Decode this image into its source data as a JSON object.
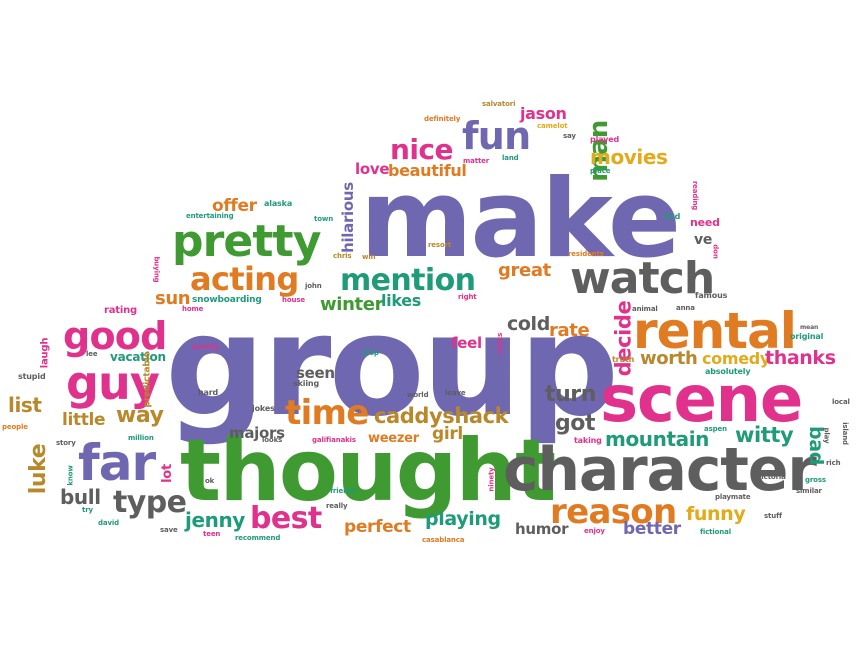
{
  "palette": {
    "purple": "#6f67b0",
    "green": "#3f9a32",
    "orange": "#e07b22",
    "pink": "#e0328c",
    "gray": "#5e5e5e",
    "yellow": "#e2ab1b",
    "teal": "#1f9b79",
    "brown": "#b8882a"
  },
  "words": [
    {
      "text": "group",
      "color": "purple"
    },
    {
      "text": "make",
      "color": "purple"
    },
    {
      "text": "thought",
      "color": "green"
    },
    {
      "text": "character",
      "color": "gray"
    },
    {
      "text": "scene",
      "color": "pink"
    },
    {
      "text": "pretty",
      "color": "green"
    },
    {
      "text": "rental",
      "color": "orange"
    },
    {
      "text": "watch",
      "color": "gray"
    },
    {
      "text": "far",
      "color": "purple"
    },
    {
      "text": "guy",
      "color": "pink"
    },
    {
      "text": "good",
      "color": "pink"
    },
    {
      "text": "acting",
      "color": "orange"
    },
    {
      "text": "mention",
      "color": "teal"
    },
    {
      "text": "fun",
      "color": "purple"
    },
    {
      "text": "nice",
      "color": "pink"
    },
    {
      "text": "man",
      "color": "green"
    },
    {
      "text": "reason",
      "color": "orange"
    },
    {
      "text": "time",
      "color": "orange"
    },
    {
      "text": "best",
      "color": "pink"
    },
    {
      "text": "type",
      "color": "gray"
    },
    {
      "text": "movies",
      "color": "yellow"
    },
    {
      "text": "beautiful",
      "color": "orange"
    },
    {
      "text": "caddyshack",
      "color": "brown"
    },
    {
      "text": "mountain",
      "color": "teal"
    },
    {
      "text": "witty",
      "color": "teal"
    },
    {
      "text": "funny",
      "color": "yellow"
    },
    {
      "text": "playing",
      "color": "teal"
    },
    {
      "text": "perfect",
      "color": "orange"
    },
    {
      "text": "jenny",
      "color": "teal"
    },
    {
      "text": "luke",
      "color": "brown"
    },
    {
      "text": "list",
      "color": "brown"
    },
    {
      "text": "little",
      "color": "brown"
    },
    {
      "text": "way",
      "color": "brown"
    },
    {
      "text": "bull",
      "color": "gray"
    },
    {
      "text": "turn",
      "color": "gray"
    },
    {
      "text": "got",
      "color": "gray"
    },
    {
      "text": "girl",
      "color": "brown"
    },
    {
      "text": "cold",
      "color": "gray"
    },
    {
      "text": "rate",
      "color": "orange"
    },
    {
      "text": "decide",
      "color": "pink"
    },
    {
      "text": "worth",
      "color": "brown"
    },
    {
      "text": "comedy",
      "color": "yellow"
    },
    {
      "text": "thanks",
      "color": "pink"
    },
    {
      "text": "great",
      "color": "orange"
    },
    {
      "text": "winter",
      "color": "green"
    },
    {
      "text": "likes",
      "color": "teal"
    },
    {
      "text": "sun",
      "color": "orange"
    },
    {
      "text": "offer",
      "color": "orange"
    },
    {
      "text": "love",
      "color": "pink"
    },
    {
      "text": "jason",
      "color": "pink"
    },
    {
      "text": "hilarious",
      "color": "purple"
    },
    {
      "text": "seen",
      "color": "gray"
    },
    {
      "text": "feel",
      "color": "pink"
    },
    {
      "text": "majors",
      "color": "gray"
    },
    {
      "text": "weezer",
      "color": "orange"
    },
    {
      "text": "humor",
      "color": "gray"
    },
    {
      "text": "better",
      "color": "purple"
    },
    {
      "text": "bad",
      "color": "teal"
    },
    {
      "text": "lot",
      "color": "pink"
    },
    {
      "text": "vacation",
      "color": "teal"
    },
    {
      "text": "snowboarding",
      "color": "teal"
    },
    {
      "text": "rating",
      "color": "pink"
    },
    {
      "text": "laugh",
      "color": "pink"
    },
    {
      "text": "stupid",
      "color": "gray"
    },
    {
      "text": "predictable",
      "color": "brown"
    },
    {
      "text": "worthy",
      "color": "pink"
    },
    {
      "text": "hard",
      "color": "gray"
    },
    {
      "text": "jokes",
      "color": "gray"
    },
    {
      "text": "skiing",
      "color": "gray"
    },
    {
      "text": "stop",
      "color": "teal"
    },
    {
      "text": "world",
      "color": "gray"
    },
    {
      "text": "leave",
      "color": "gray"
    },
    {
      "text": "taking",
      "color": "pink"
    },
    {
      "text": "aspen",
      "color": "teal"
    },
    {
      "text": "absolutely",
      "color": "teal"
    },
    {
      "text": "truth",
      "color": "brown"
    },
    {
      "text": "ve",
      "color": "gray"
    },
    {
      "text": "need",
      "color": "pink"
    },
    {
      "text": "dvd",
      "color": "teal"
    },
    {
      "text": "played",
      "color": "pink"
    },
    {
      "text": "say",
      "color": "gray"
    },
    {
      "text": "land",
      "color": "teal"
    },
    {
      "text": "place",
      "color": "teal"
    },
    {
      "text": "matter",
      "color": "pink"
    },
    {
      "text": "camelot",
      "color": "yellow"
    },
    {
      "text": "salvatori",
      "color": "brown"
    },
    {
      "text": "definitely",
      "color": "orange"
    },
    {
      "text": "alaska",
      "color": "teal"
    },
    {
      "text": "entertaining",
      "color": "teal"
    },
    {
      "text": "town",
      "color": "teal"
    },
    {
      "text": "resort",
      "color": "brown"
    },
    {
      "text": "residents",
      "color": "orange"
    },
    {
      "text": "chris",
      "color": "brown"
    },
    {
      "text": "win",
      "color": "brown"
    },
    {
      "text": "john",
      "color": "gray"
    },
    {
      "text": "house",
      "color": "pink"
    },
    {
      "text": "right",
      "color": "pink"
    },
    {
      "text": "home",
      "color": "pink"
    },
    {
      "text": "buying",
      "color": "pink"
    },
    {
      "text": "reading",
      "color": "pink"
    },
    {
      "text": "don",
      "color": "pink"
    },
    {
      "text": "famous",
      "color": "gray"
    },
    {
      "text": "anna",
      "color": "gray"
    },
    {
      "text": "animal",
      "color": "gray"
    },
    {
      "text": "original",
      "color": "teal"
    },
    {
      "text": "mean",
      "color": "gray"
    },
    {
      "text": "local",
      "color": "gray"
    },
    {
      "text": "island",
      "color": "gray"
    },
    {
      "text": "play",
      "color": "gray"
    },
    {
      "text": "rich",
      "color": "gray"
    },
    {
      "text": "gross",
      "color": "teal"
    },
    {
      "text": "similar",
      "color": "gray"
    },
    {
      "text": "victoria",
      "color": "gray"
    },
    {
      "text": "playmate",
      "color": "gray"
    },
    {
      "text": "stuff",
      "color": "gray"
    },
    {
      "text": "fictional",
      "color": "teal"
    },
    {
      "text": "enjoy",
      "color": "pink"
    },
    {
      "text": "casablanca",
      "color": "orange"
    },
    {
      "text": "ninety",
      "color": "pink"
    },
    {
      "text": "friends",
      "color": "teal"
    },
    {
      "text": "really",
      "color": "gray"
    },
    {
      "text": "galifianakis",
      "color": "pink"
    },
    {
      "text": "looks",
      "color": "gray"
    },
    {
      "text": "ok",
      "color": "gray"
    },
    {
      "text": "save",
      "color": "gray"
    },
    {
      "text": "teen",
      "color": "pink"
    },
    {
      "text": "recommend",
      "color": "teal"
    },
    {
      "text": "david",
      "color": "teal"
    },
    {
      "text": "try",
      "color": "teal"
    },
    {
      "text": "know",
      "color": "teal"
    },
    {
      "text": "story",
      "color": "gray"
    },
    {
      "text": "people",
      "color": "orange"
    },
    {
      "text": "million",
      "color": "teal"
    },
    {
      "text": "lee",
      "color": "gray"
    },
    {
      "text": "ranks",
      "color": "pink"
    }
  ]
}
